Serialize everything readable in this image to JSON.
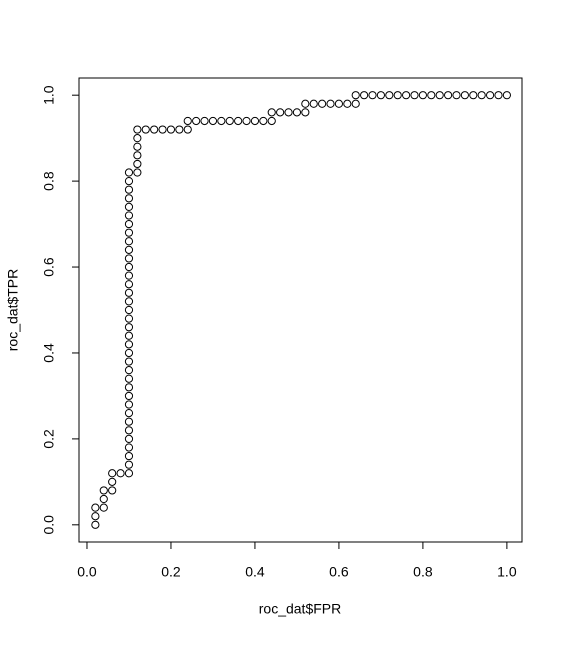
{
  "chart_data": {
    "type": "scatter",
    "x_label": "roc_dat$FPR",
    "y_label": "roc_dat$TPR",
    "x": [
      0.02,
      0.02,
      0.02,
      0.04,
      0.04,
      0.04,
      0.06,
      0.06,
      0.06,
      0.08,
      0.1,
      0.1,
      0.1,
      0.1,
      0.1,
      0.1,
      0.1,
      0.1,
      0.1,
      0.1,
      0.1,
      0.1,
      0.1,
      0.1,
      0.1,
      0.1,
      0.1,
      0.1,
      0.1,
      0.1,
      0.1,
      0.1,
      0.1,
      0.1,
      0.1,
      0.1,
      0.1,
      0.1,
      0.1,
      0.1,
      0.1,
      0.1,
      0.1,
      0.1,
      0.1,
      0.1,
      0.12,
      0.12,
      0.12,
      0.12,
      0.12,
      0.12,
      0.14,
      0.16,
      0.18,
      0.2,
      0.22,
      0.24,
      0.24,
      0.26,
      0.28,
      0.3,
      0.32,
      0.34,
      0.36,
      0.38,
      0.4,
      0.42,
      0.44,
      0.44,
      0.46,
      0.48,
      0.5,
      0.52,
      0.52,
      0.54,
      0.56,
      0.58,
      0.6,
      0.62,
      0.64,
      0.64,
      0.66,
      0.68,
      0.7,
      0.72,
      0.74,
      0.76,
      0.78,
      0.8,
      0.82,
      0.84,
      0.86,
      0.88,
      0.9,
      0.92,
      0.94,
      0.96,
      0.98,
      1
    ],
    "y": [
      0,
      0.02,
      0.04,
      0.04,
      0.06,
      0.08,
      0.08,
      0.1,
      0.12,
      0.12,
      0.12,
      0.14,
      0.16,
      0.18,
      0.2,
      0.22,
      0.24,
      0.26,
      0.28,
      0.3,
      0.32,
      0.34,
      0.36,
      0.38,
      0.4,
      0.42,
      0.44,
      0.46,
      0.48,
      0.5,
      0.52,
      0.54,
      0.56,
      0.58,
      0.6,
      0.62,
      0.64,
      0.66,
      0.68,
      0.7,
      0.72,
      0.74,
      0.76,
      0.78,
      0.8,
      0.82,
      0.82,
      0.84,
      0.86,
      0.88,
      0.9,
      0.92,
      0.92,
      0.92,
      0.92,
      0.92,
      0.92,
      0.92,
      0.94,
      0.94,
      0.94,
      0.94,
      0.94,
      0.94,
      0.94,
      0.94,
      0.94,
      0.94,
      0.94,
      0.96,
      0.96,
      0.96,
      0.96,
      0.96,
      0.98,
      0.98,
      0.98,
      0.98,
      0.98,
      0.98,
      0.98,
      1,
      1,
      1,
      1,
      1,
      1,
      1,
      1,
      1,
      1,
      1,
      1,
      1,
      1,
      1,
      1,
      1,
      1,
      1
    ],
    "color": "#000000",
    "xlim": [
      -0.019,
      1.036
    ],
    "ylim": [
      -0.04,
      1.04
    ],
    "xticks": [
      {
        "value": 0,
        "label": "0.0"
      },
      0.2,
      0.4,
      0.6,
      0.8,
      {
        "value": 1,
        "label": "1.0"
      }
    ],
    "yticks": [
      {
        "value": 0,
        "label": "0.0"
      },
      0.2,
      0.4,
      0.6,
      0.8,
      {
        "value": 1,
        "label": "1.0"
      }
    ]
  }
}
